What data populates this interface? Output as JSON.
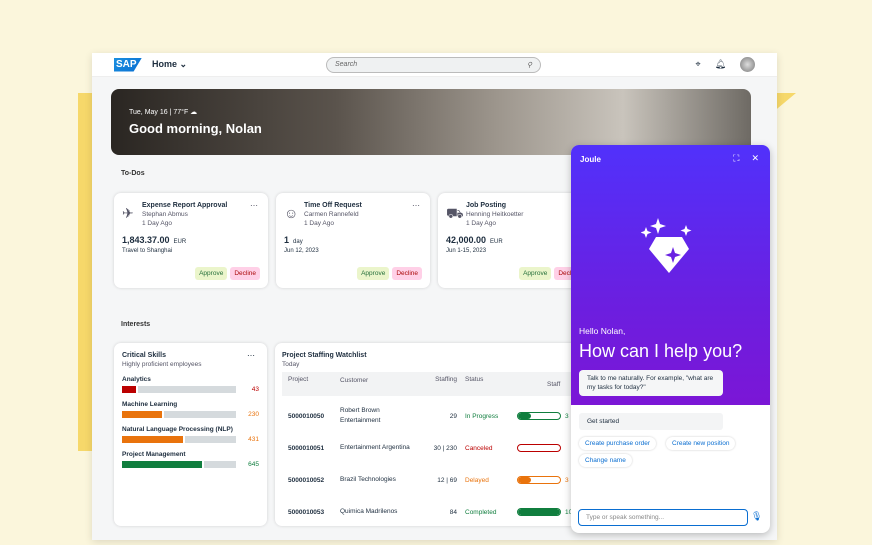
{
  "header": {
    "logo": "SAP",
    "home": "Home",
    "search_placeholder": "Search"
  },
  "hero": {
    "date": "Tue, May 16 | 77°F",
    "greeting": "Good morning, Nolan"
  },
  "todos": {
    "label": "To-Dos",
    "cards": [
      {
        "icon": "airplane-icon",
        "title": "Expense Report Approval",
        "person": "Stephan Abmus",
        "age": "1 Day Ago",
        "amount": "1,843.37.00",
        "unit": "EUR",
        "sub": "Travel to Shanghai",
        "approve": "Approve",
        "decline": "Decline"
      },
      {
        "icon": "person-icon",
        "title": "Time Off Request",
        "person": "Carmen Rannefeld",
        "age": "1 Day Ago",
        "amount": "1",
        "unit": "day",
        "sub": "Jun 12, 2023",
        "approve": "Approve",
        "decline": "Decline"
      },
      {
        "icon": "truck-icon",
        "title": "Job Posting",
        "person": "Henning Heitkoetter",
        "age": "1 Day Ago",
        "amount": "42,000.00",
        "unit": "EUR",
        "sub": "Jun 1-15, 2023",
        "approve": "Approve",
        "decline": "Decline"
      }
    ]
  },
  "interests": {
    "label": "Interests",
    "skills": {
      "title": "Critical Skills",
      "subtitle": "Highly proficient employees",
      "items": [
        {
          "name": "Analytics",
          "value": "43",
          "fill": 0.14,
          "color": "#bb0000"
        },
        {
          "name": "Machine Learning",
          "value": "230",
          "fill": 0.37,
          "color": "#e9730c"
        },
        {
          "name": "Natural Language Processing (NLP)",
          "value": "431",
          "fill": 0.55,
          "color": "#e9730c"
        },
        {
          "name": "Project Management",
          "value": "645",
          "fill": 0.72,
          "color": "#107e3e"
        }
      ]
    },
    "watchlist": {
      "title": "Project Staffing Watchlist",
      "subtitle": "Today",
      "columns": [
        "Project",
        "Customer",
        "Staffing",
        "Status",
        "Staff"
      ],
      "rows": [
        {
          "project": "5000010050",
          "customer": "Robert Brown Entertainment",
          "staffing": "29",
          "status": "In Progress",
          "color": "#107e3e",
          "progress": 0.3,
          "pct": "3"
        },
        {
          "project": "5000010051",
          "customer": "Entertainment Argentina",
          "staffing": "30 | 230",
          "status": "Canceled",
          "color": "#bb0000",
          "progress": 0,
          "pct": ""
        },
        {
          "project": "5000010052",
          "customer": "Brazil Technologies",
          "staffing": "12 | 69",
          "status": "Delayed",
          "color": "#e9730c",
          "progress": 0.3,
          "pct": "3"
        },
        {
          "project": "5000010053",
          "customer": "Quimica Madrilenos",
          "staffing": "84",
          "status": "Completed",
          "color": "#107e3e",
          "progress": 1,
          "pct": "10"
        }
      ]
    }
  },
  "joule": {
    "title": "Joule",
    "hello": "Hello Nolan,",
    "headline": "How can I help you?",
    "tip": "Talk to me naturally. For example, \"what are my tasks for today?\"",
    "get_started": "Get started",
    "chips": [
      "Create purchase order",
      "Create new position",
      "Change name"
    ],
    "input_placeholder": "Type or speak something..."
  }
}
